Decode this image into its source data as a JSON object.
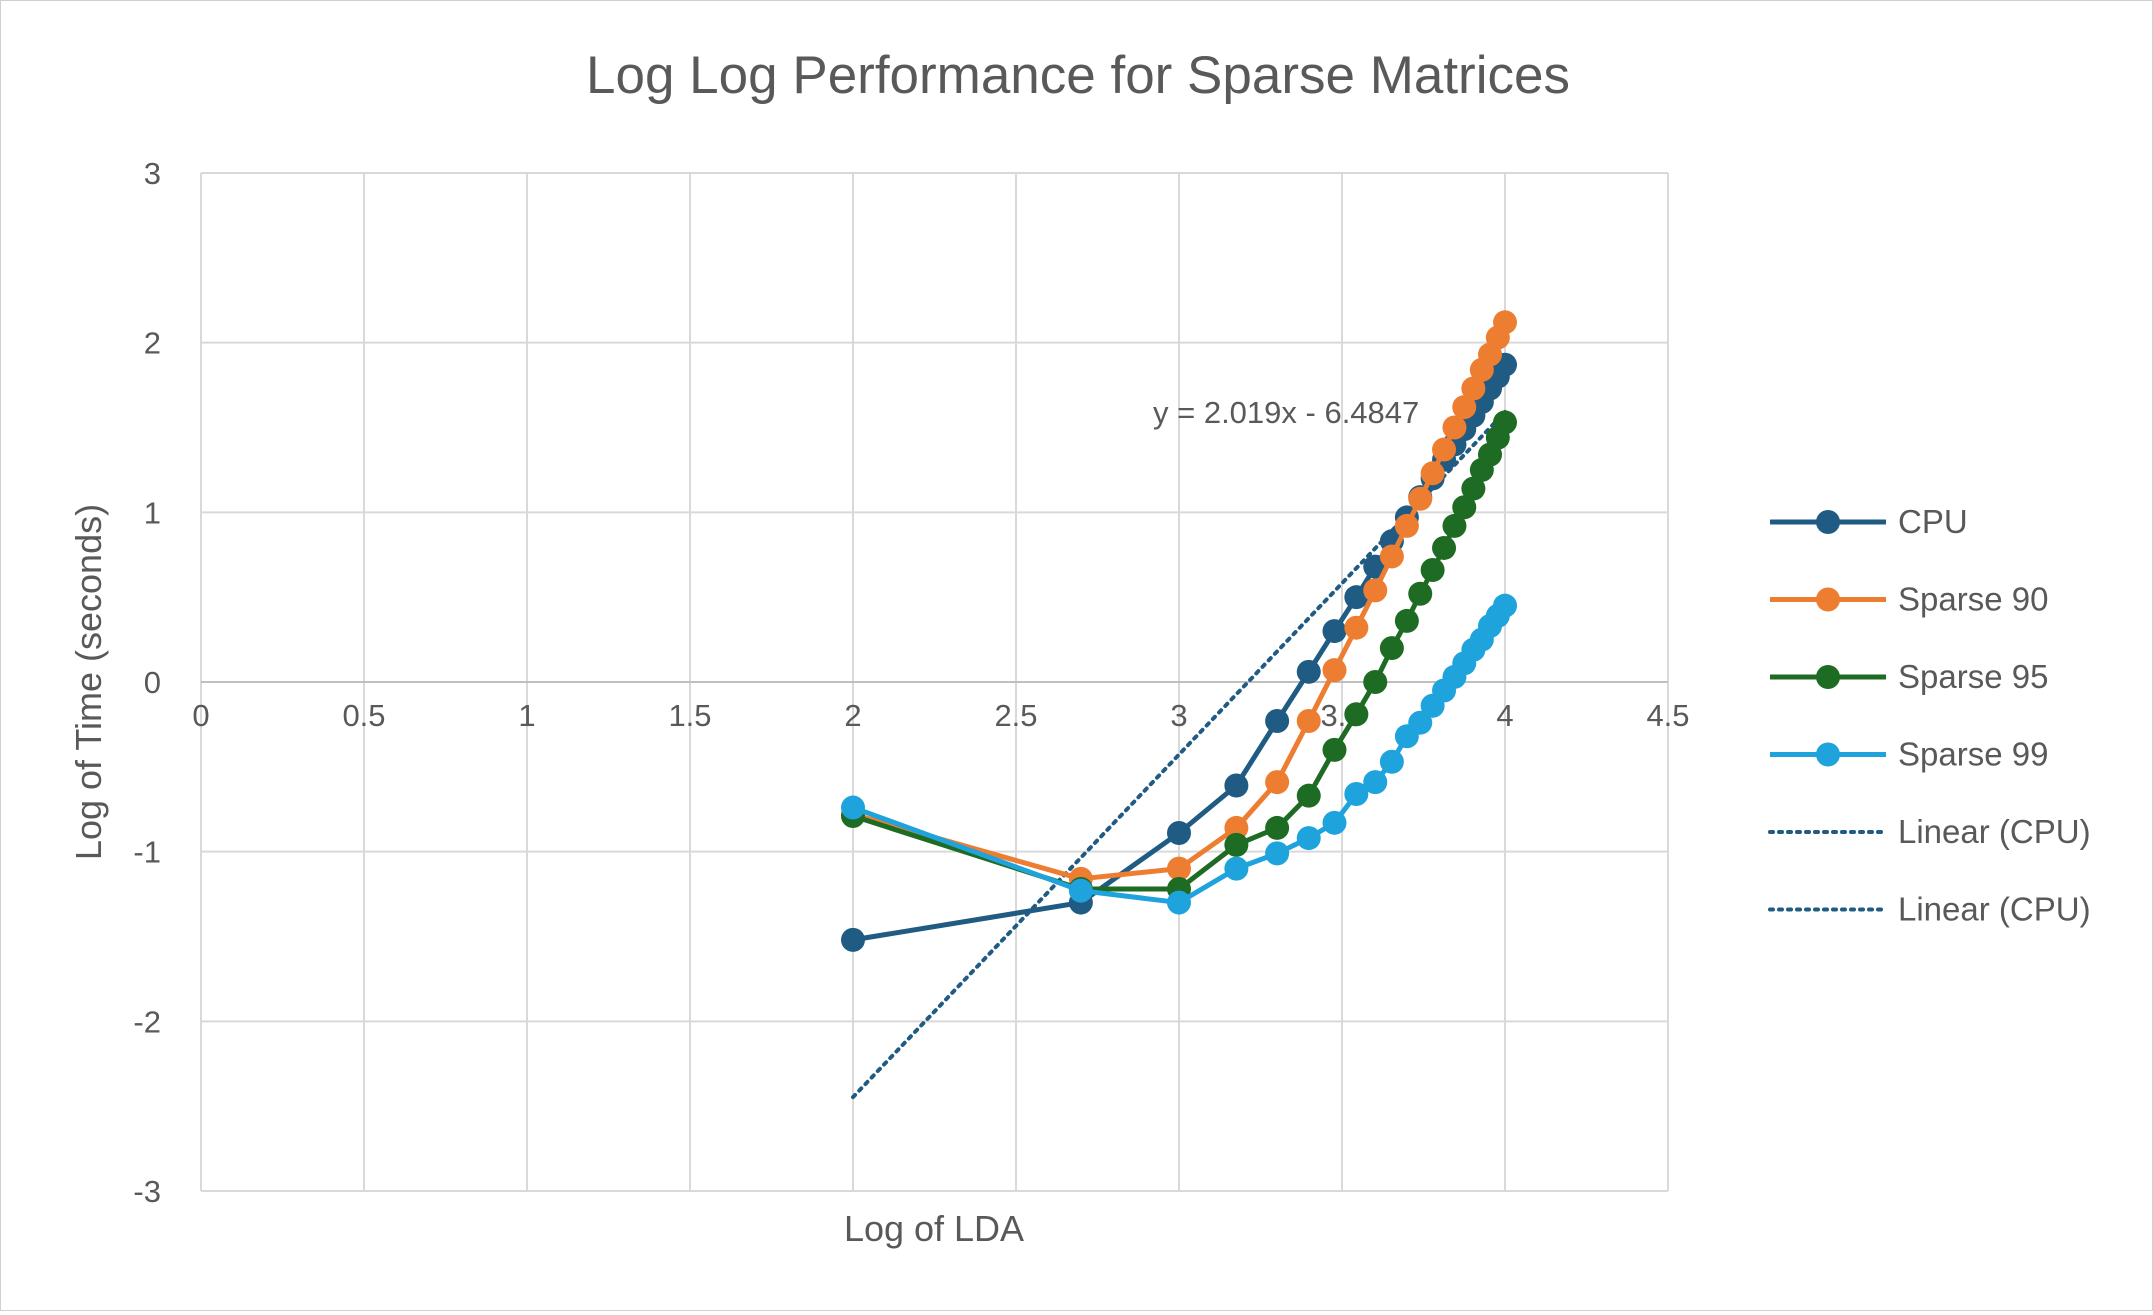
{
  "chart_data": {
    "type": "line",
    "title": "Log Log Performance for Sparse Matrices",
    "xlabel": "Log of LDA",
    "ylabel": "Log of Time (seconds)",
    "xlim": [
      0,
      4.5
    ],
    "ylim": [
      -3,
      3
    ],
    "x_ticks": [
      "0",
      "0.5",
      "1",
      "1.5",
      "2",
      "2.5",
      "3",
      "3.5",
      "4",
      "4.5"
    ],
    "y_ticks": [
      "3",
      "2",
      "1",
      "0",
      "-1",
      "-2",
      "-3"
    ],
    "grid": true,
    "legend_position": "right",
    "trendline_label": "y = 2.019x - 6.4847",
    "series": [
      {
        "name": "CPU",
        "color": "#1f5b82",
        "x": [
          2,
          2.699,
          3,
          3.176,
          3.301,
          3.398,
          3.477,
          3.544,
          3.602,
          3.653,
          3.699,
          3.74,
          3.778,
          3.813,
          3.845,
          3.875,
          3.903,
          3.929,
          3.954,
          3.978,
          4
        ],
        "y": [
          -1.52,
          -1.3,
          -0.89,
          -0.61,
          -0.23,
          0.06,
          0.3,
          0.5,
          0.68,
          0.83,
          0.97,
          1.09,
          1.2,
          1.31,
          1.4,
          1.49,
          1.57,
          1.65,
          1.73,
          1.8,
          1.87
        ]
      },
      {
        "name": "Sparse 90",
        "color": "#ed7d31",
        "x": [
          2,
          2.699,
          3,
          3.176,
          3.301,
          3.398,
          3.477,
          3.544,
          3.602,
          3.653,
          3.699,
          3.74,
          3.778,
          3.813,
          3.845,
          3.875,
          3.903,
          3.929,
          3.954,
          3.978,
          4
        ],
        "y": [
          -0.78,
          -1.16,
          -1.1,
          -0.86,
          -0.59,
          -0.23,
          0.07,
          0.32,
          0.54,
          0.74,
          0.92,
          1.08,
          1.23,
          1.37,
          1.5,
          1.62,
          1.73,
          1.84,
          1.93,
          2.03,
          2.12
        ]
      },
      {
        "name": "Sparse 95",
        "color": "#1e6b24",
        "x": [
          2,
          2.699,
          3,
          3.176,
          3.301,
          3.398,
          3.477,
          3.544,
          3.602,
          3.653,
          3.699,
          3.74,
          3.778,
          3.813,
          3.845,
          3.875,
          3.903,
          3.929,
          3.954,
          3.978,
          4
        ],
        "y": [
          -0.79,
          -1.22,
          -1.22,
          -0.96,
          -0.86,
          -0.67,
          -0.4,
          -0.19,
          0.0,
          0.2,
          0.36,
          0.52,
          0.66,
          0.79,
          0.92,
          1.03,
          1.14,
          1.25,
          1.34,
          1.44,
          1.53
        ]
      },
      {
        "name": "Sparse 99",
        "color": "#1ea3dc",
        "x": [
          2,
          2.699,
          3,
          3.176,
          3.301,
          3.398,
          3.477,
          3.544,
          3.602,
          3.653,
          3.699,
          3.74,
          3.778,
          3.813,
          3.845,
          3.875,
          3.903,
          3.929,
          3.954,
          3.978,
          4
        ],
        "y": [
          -0.74,
          -1.23,
          -1.3,
          -1.1,
          -1.01,
          -0.92,
          -0.83,
          -0.66,
          -0.59,
          -0.47,
          -0.32,
          -0.24,
          -0.14,
          -0.05,
          0.03,
          0.11,
          0.19,
          0.25,
          0.33,
          0.39,
          0.45
        ]
      }
    ],
    "trendlines": [
      {
        "name": "Linear (CPU)",
        "color": "#1f5b82",
        "slope": 2.019,
        "intercept": -6.4847,
        "x_range": [
          2,
          4
        ]
      },
      {
        "name": "Linear (CPU)",
        "color": "#1f5b82",
        "slope": 2.019,
        "intercept": -6.4847,
        "x_range": [
          2,
          4
        ]
      }
    ]
  }
}
